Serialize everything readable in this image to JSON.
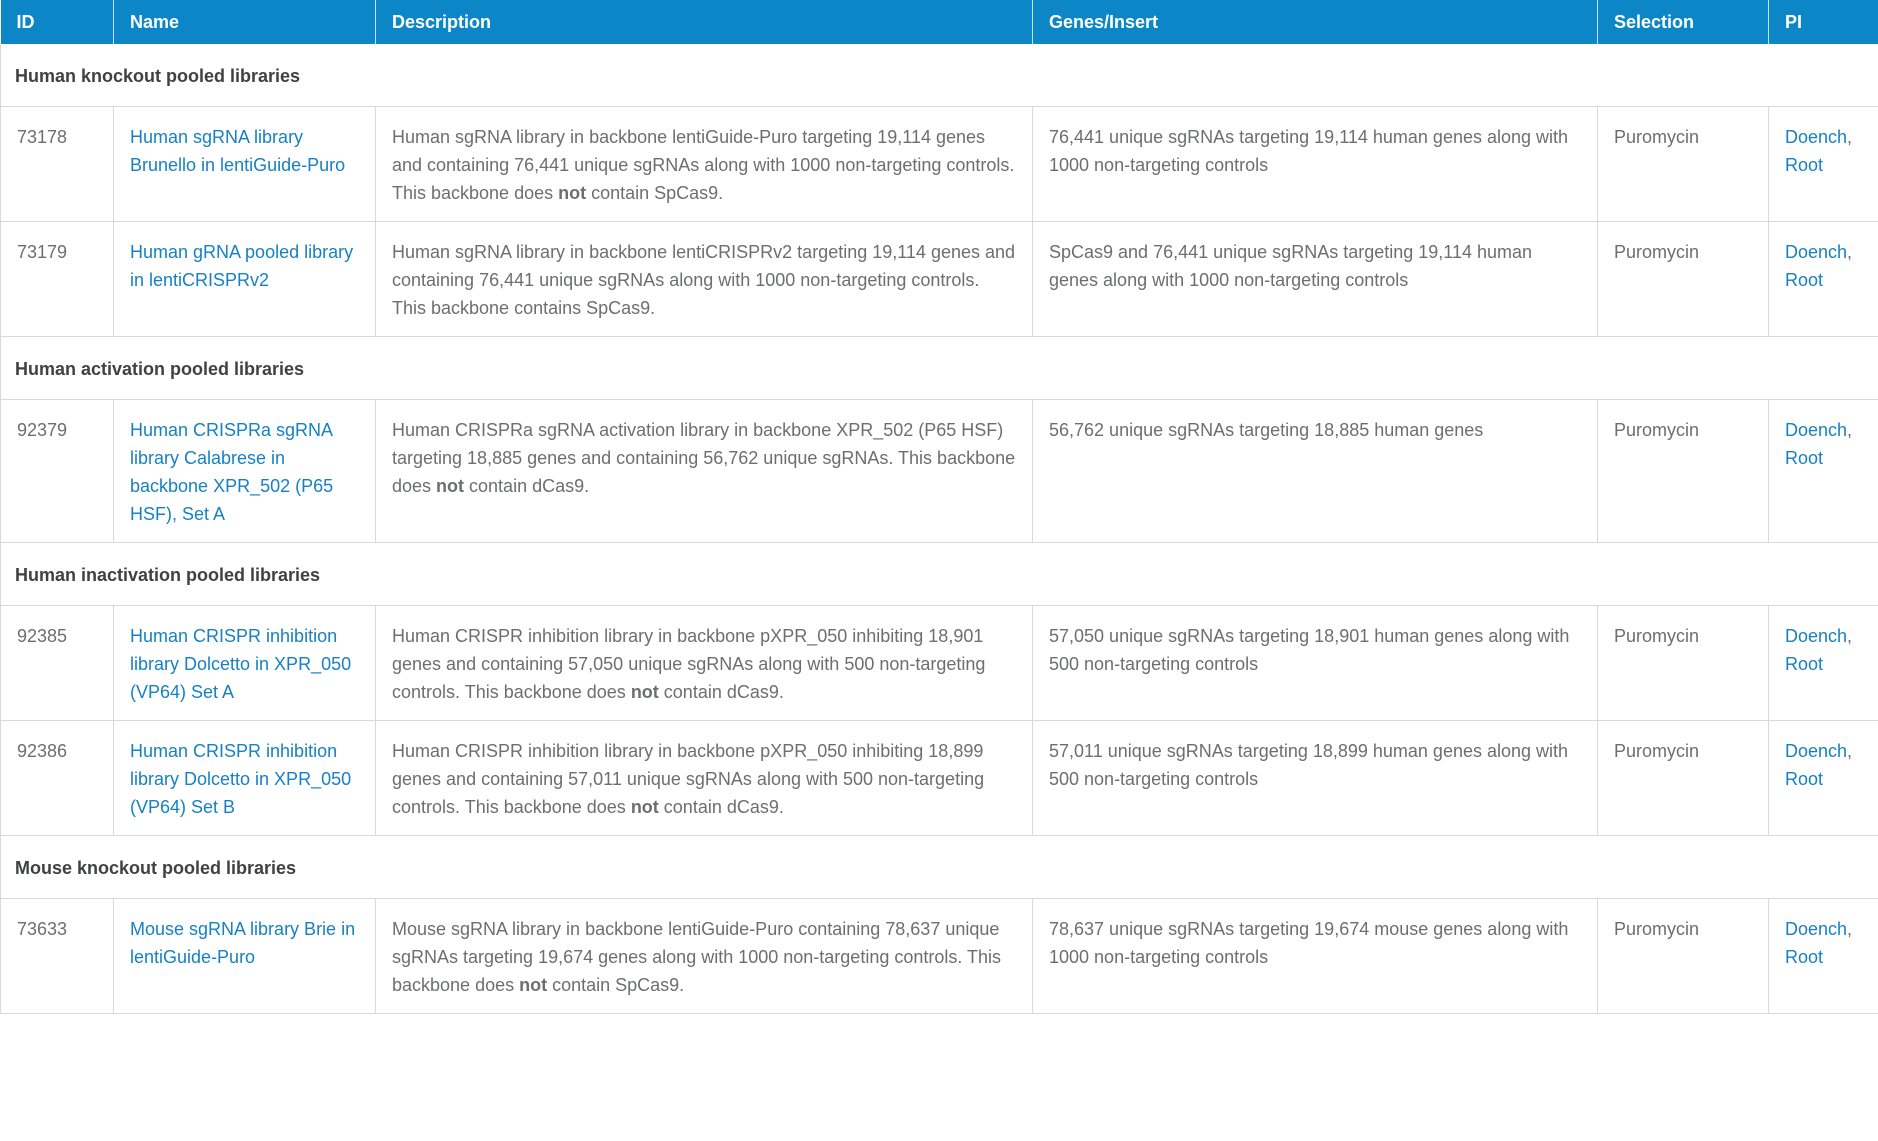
{
  "table": {
    "colors": {
      "header_bg": "#0d86c8",
      "link_blue": "#1681c4",
      "body_text": "#6d6e71",
      "section_text": "#404145",
      "border": "#d9d9d9"
    },
    "columns": [
      {
        "label": "ID"
      },
      {
        "label": "Name"
      },
      {
        "label": "Description"
      },
      {
        "label": "Genes/Insert"
      },
      {
        "label": "Selection"
      },
      {
        "label": "PI"
      }
    ],
    "pi_separator": ", ",
    "sections": [
      {
        "title": "Human knockout pooled libraries",
        "rows": [
          {
            "id": "73178",
            "name": "Human sgRNA library Brunello in lentiGuide-Puro",
            "description": [
              {
                "text": "Human sgRNA library in backbone lentiGuide-Puro targeting 19,114 genes and containing 76,441 unique sgRNAs along with 1000 non-targeting controls. This backbone does ",
                "bold": false
              },
              {
                "text": "not",
                "bold": true
              },
              {
                "text": " contain SpCas9.",
                "bold": false
              }
            ],
            "genes_insert": "76,441 unique sgRNAs targeting 19,114 human genes along with 1000 non-targeting controls",
            "selection": "Puromycin",
            "pi": [
              "Doench",
              "Root"
            ]
          },
          {
            "id": "73179",
            "name": "Human gRNA pooled library in lentiCRISPRv2",
            "description": [
              {
                "text": "Human sgRNA library in backbone lentiCRISPRv2 targeting 19,114 genes and containing 76,441 unique sgRNAs along with 1000 non-targeting controls. This backbone contains SpCas9.",
                "bold": false
              }
            ],
            "genes_insert": "SpCas9 and 76,441 unique sgRNAs targeting 19,114 human genes along with 1000 non-targeting controls",
            "selection": "Puromycin",
            "pi": [
              "Doench",
              "Root"
            ]
          }
        ]
      },
      {
        "title": "Human activation pooled libraries",
        "rows": [
          {
            "id": "92379",
            "name": "Human CRISPRa sgRNA library Calabrese in backbone XPR_502 (P65 HSF), Set A",
            "description": [
              {
                "text": "Human CRISPRa sgRNA activation library in backbone XPR_502 (P65 HSF) targeting 18,885 genes and containing 56,762 unique sgRNAs. This backbone does ",
                "bold": false
              },
              {
                "text": "not",
                "bold": true
              },
              {
                "text": " contain dCas9.",
                "bold": false
              }
            ],
            "genes_insert": "56,762 unique sgRNAs targeting 18,885 human genes",
            "selection": "Puromycin",
            "pi": [
              "Doench",
              "Root"
            ]
          }
        ]
      },
      {
        "title": "Human inactivation pooled libraries",
        "rows": [
          {
            "id": "92385",
            "name": "Human CRISPR inhibition library Dolcetto in XPR_050 (VP64) Set A",
            "description": [
              {
                "text": "Human CRISPR inhibition library in backbone pXPR_050 inhibiting 18,901 genes and containing 57,050 unique sgRNAs along with 500 non-targeting controls. This backbone does ",
                "bold": false
              },
              {
                "text": "not",
                "bold": true
              },
              {
                "text": " contain dCas9.",
                "bold": false
              }
            ],
            "genes_insert": "57,050 unique sgRNAs targeting 18,901 human genes along with 500 non-targeting controls",
            "selection": "Puromycin",
            "pi": [
              "Doench",
              "Root"
            ]
          },
          {
            "id": "92386",
            "name": "Human CRISPR inhibition library Dolcetto in XPR_050 (VP64) Set B",
            "description": [
              {
                "text": "Human CRISPR inhibition library in backbone pXPR_050 inhibiting 18,899 genes and containing 57,011 unique sgRNAs along with 500 non-targeting controls. This backbone does ",
                "bold": false
              },
              {
                "text": "not",
                "bold": true
              },
              {
                "text": " contain dCas9.",
                "bold": false
              }
            ],
            "genes_insert": "57,011 unique sgRNAs targeting 18,899 human genes along with 500 non-targeting controls",
            "selection": "Puromycin",
            "pi": [
              "Doench",
              "Root"
            ]
          }
        ]
      },
      {
        "title": "Mouse knockout pooled libraries",
        "rows": [
          {
            "id": "73633",
            "name": "Mouse sgRNA library Brie in lentiGuide-Puro",
            "description": [
              {
                "text": "Mouse sgRNA library in backbone lentiGuide-Puro containing 78,637 unique sgRNAs targeting 19,674 genes along with 1000 non-targeting controls. This backbone does ",
                "bold": false
              },
              {
                "text": "not",
                "bold": true
              },
              {
                "text": " contain SpCas9.",
                "bold": false
              }
            ],
            "genes_insert": "78,637 unique sgRNAs targeting 19,674 mouse genes along with 1000 non-targeting controls",
            "selection": "Puromycin",
            "pi": [
              "Doench",
              "Root"
            ]
          }
        ]
      }
    ]
  }
}
